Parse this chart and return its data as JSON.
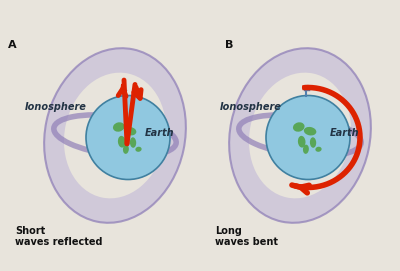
{
  "fig_width": 4.0,
  "fig_height": 2.71,
  "dpi": 100,
  "bg_color": "#e8e4dc",
  "iono_fill_color": "#c8c0d8",
  "iono_edge_color": "#9080b8",
  "iono_inner_color": "#d8d4e8",
  "earth_ocean_color": "#90c8e0",
  "earth_land_color": "#50a040",
  "earth_edge_color": "#4080a0",
  "wave_color": "#dd2200",
  "antenna_color": "#5080b0",
  "text_color": "#223344",
  "caption_color": "#111111",
  "label_color": "#111111",
  "panel_A_label": "A",
  "panel_B_label": "B",
  "caption_A_1": "Short",
  "caption_A_2": "waves reflected",
  "caption_B_1": "Long",
  "caption_B_2": "waves bent",
  "text_ionosphere": "Ionosphere",
  "text_earth": "Earth",
  "label_fontsize": 7,
  "caption_fontsize": 7,
  "letter_fontsize": 8,
  "earth_fontsize": 7
}
